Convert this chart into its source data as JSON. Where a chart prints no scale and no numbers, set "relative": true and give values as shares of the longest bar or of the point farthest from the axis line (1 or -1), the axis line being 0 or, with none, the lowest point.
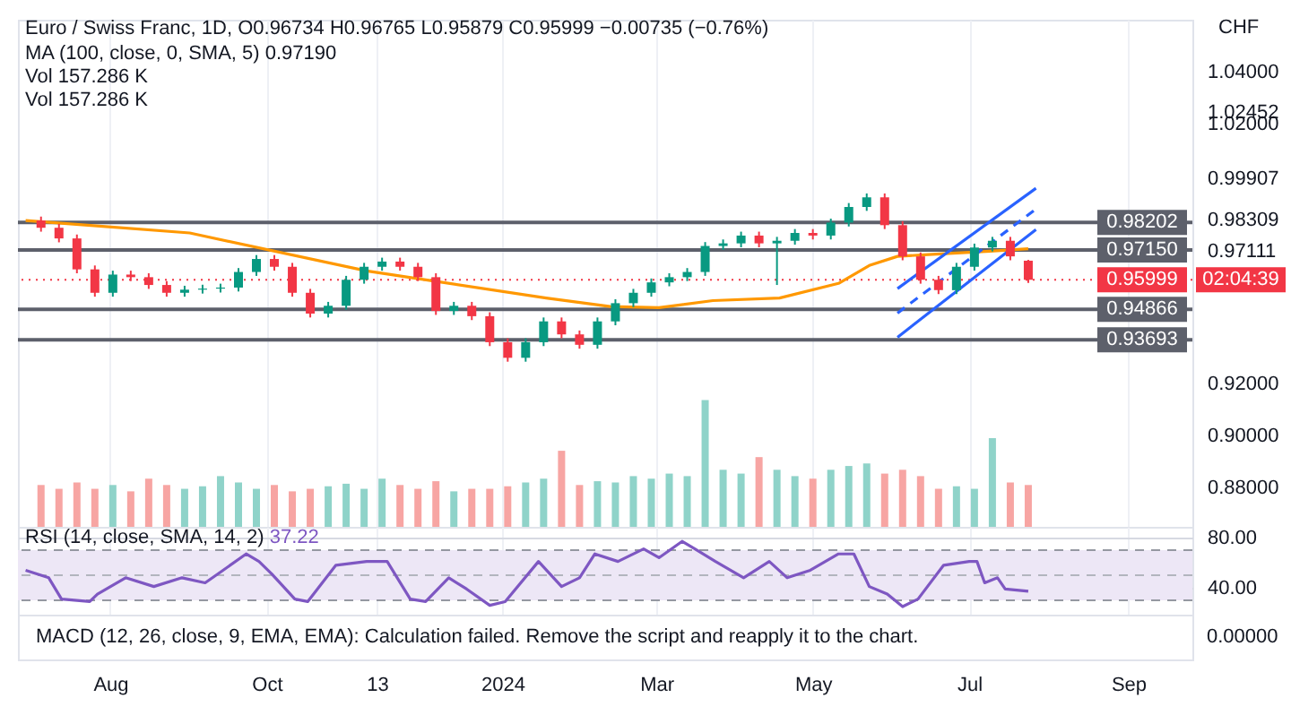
{
  "chart_data": [
    {
      "type": "candlestick",
      "title": "Euro / Swiss Franc, 1D, O0.96734 H0.96765 L0.95879 C0.95999 −0.00735 (−0.76%)",
      "ylabel": "CHF",
      "annotations": [
        "MA (100, close, 0, SMA, 5) 0.97190",
        "02:04:39"
      ],
      "x": [
        "2023-07-05",
        "2023-07-12",
        "2023-07-19",
        "2023-07-26",
        "2023-08-02",
        "2023-08-09",
        "2023-08-16",
        "2023-08-23",
        "2023-08-30",
        "2023-09-06",
        "2023-09-13",
        "2023-09-20",
        "2023-09-27",
        "2023-10-04",
        "2023-10-11",
        "2023-10-18",
        "2023-10-25",
        "2023-11-01",
        "2023-11-08",
        "2023-11-15",
        "2023-11-22",
        "2023-11-29",
        "2023-12-06",
        "2023-12-13",
        "2023-12-20",
        "2023-12-27",
        "2024-01-03",
        "2024-01-10",
        "2024-01-17",
        "2024-01-24",
        "2024-01-31",
        "2024-02-07",
        "2024-02-14",
        "2024-02-21",
        "2024-02-28",
        "2024-03-06",
        "2024-03-13",
        "2024-03-20",
        "2024-03-27",
        "2024-04-03",
        "2024-04-10",
        "2024-04-17",
        "2024-04-24",
        "2024-05-01",
        "2024-05-08",
        "2024-05-15",
        "2024-05-22",
        "2024-05-29",
        "2024-06-05",
        "2024-06-12",
        "2024-06-19",
        "2024-06-26",
        "2024-07-03",
        "2024-07-10",
        "2024-07-17",
        "2024-07-24"
      ],
      "ohlc": [
        [
          0.9828,
          0.9843,
          0.9785,
          0.98
        ],
        [
          0.98,
          0.9815,
          0.9744,
          0.9759
        ],
        [
          0.9759,
          0.9774,
          0.9625,
          0.964
        ],
        [
          0.964,
          0.9655,
          0.9535,
          0.955
        ],
        [
          0.955,
          0.9635,
          0.9535,
          0.962
        ],
        [
          0.962,
          0.9635,
          0.9595,
          0.961
        ],
        [
          0.961,
          0.9625,
          0.9565,
          0.958
        ],
        [
          0.958,
          0.9595,
          0.9535,
          0.955
        ],
        [
          0.955,
          0.9577,
          0.9535,
          0.9562
        ],
        [
          0.9562,
          0.9581,
          0.9547,
          0.9566
        ],
        [
          0.9566,
          0.9585,
          0.9551,
          0.957
        ],
        [
          0.957,
          0.9645,
          0.9555,
          0.963
        ],
        [
          0.963,
          0.9695,
          0.9615,
          0.968
        ],
        [
          0.968,
          0.9695,
          0.9635,
          0.965
        ],
        [
          0.965,
          0.9665,
          0.9535,
          0.955
        ],
        [
          0.955,
          0.9565,
          0.9455,
          0.947
        ],
        [
          0.947,
          0.9515,
          0.9455,
          0.95
        ],
        [
          0.95,
          0.9615,
          0.9485,
          0.96
        ],
        [
          0.96,
          0.9665,
          0.9585,
          0.965
        ],
        [
          0.965,
          0.9685,
          0.9635,
          0.967
        ],
        [
          0.967,
          0.9685,
          0.9635,
          0.965
        ],
        [
          0.965,
          0.9665,
          0.9595,
          0.961
        ],
        [
          0.961,
          0.9625,
          0.9465,
          0.948
        ],
        [
          0.948,
          0.9515,
          0.9465,
          0.95
        ],
        [
          0.95,
          0.9515,
          0.9445,
          0.946
        ],
        [
          0.946,
          0.9475,
          0.9345,
          0.936
        ],
        [
          0.936,
          0.9375,
          0.9285,
          0.93
        ],
        [
          0.93,
          0.9375,
          0.9285,
          0.936
        ],
        [
          0.936,
          0.9455,
          0.9345,
          0.944
        ],
        [
          0.944,
          0.9455,
          0.9375,
          0.939
        ],
        [
          0.939,
          0.9405,
          0.9335,
          0.935
        ],
        [
          0.935,
          0.9455,
          0.9335,
          0.944
        ],
        [
          0.944,
          0.9525,
          0.9425,
          0.951
        ],
        [
          0.951,
          0.9565,
          0.9495,
          0.955
        ],
        [
          0.955,
          0.9605,
          0.9535,
          0.959
        ],
        [
          0.959,
          0.9625,
          0.9575,
          0.961
        ],
        [
          0.961,
          0.9645,
          0.9595,
          0.963
        ],
        [
          0.963,
          0.9745,
          0.9615,
          0.973
        ],
        [
          0.973,
          0.9755,
          0.9715,
          0.974
        ],
        [
          0.974,
          0.9785,
          0.9725,
          0.977
        ],
        [
          0.977,
          0.9785,
          0.9725,
          0.974
        ],
        [
          0.974,
          0.9765,
          0.958,
          0.975
        ],
        [
          0.975,
          0.9795,
          0.9735,
          0.978
        ],
        [
          0.978,
          0.9795,
          0.9755,
          0.977
        ],
        [
          0.977,
          0.9835,
          0.9755,
          0.982
        ],
        [
          0.982,
          0.9895,
          0.9805,
          0.988
        ],
        [
          0.988,
          0.9932,
          0.9865,
          0.9917
        ],
        [
          0.9917,
          0.9932,
          0.9795,
          0.981
        ],
        [
          0.981,
          0.9825,
          0.9675,
          0.969
        ],
        [
          0.969,
          0.9705,
          0.9585,
          0.96
        ],
        [
          0.96,
          0.9615,
          0.9545,
          0.956
        ],
        [
          0.956,
          0.9665,
          0.9545,
          0.965
        ],
        [
          0.965,
          0.9739,
          0.9635,
          0.9724
        ],
        [
          0.9724,
          0.9765,
          0.9709,
          0.975
        ],
        [
          0.975,
          0.9765,
          0.9675,
          0.969
        ],
        [
          0.96734,
          0.96765,
          0.95879,
          0.95999
        ]
      ],
      "colors": [
        "#f23645",
        "#f23645",
        "#f23645",
        "#f23645",
        "#089981",
        "#f23645",
        "#f23645",
        "#f23645",
        "#089981",
        "#089981",
        "#089981",
        "#089981",
        "#089981",
        "#f23645",
        "#f23645",
        "#f23645",
        "#089981",
        "#089981",
        "#089981",
        "#089981",
        "#f23645",
        "#f23645",
        "#f23645",
        "#089981",
        "#f23645",
        "#f23645",
        "#f23645",
        "#089981",
        "#089981",
        "#f23645",
        "#f23645",
        "#089981",
        "#089981",
        "#089981",
        "#089981",
        "#089981",
        "#089981",
        "#089981",
        "#089981",
        "#089981",
        "#f23645",
        "#089981",
        "#089981",
        "#f23645",
        "#089981",
        "#089981",
        "#089981",
        "#f23645",
        "#f23645",
        "#f23645",
        "#f23645",
        "#089981",
        "#089981",
        "#089981",
        "#f23645",
        "#f23645"
      ],
      "series": [
        {
          "type": "line",
          "color": "#ff9800",
          "x": [
            "2023-06-29",
            "2023-09-01",
            "2023-11-09",
            "2024-01-18",
            "2024-02-12",
            "2024-03-02",
            "2024-03-23",
            "2024-04-18",
            "2024-05-11",
            "2024-05-23",
            "2024-06-03",
            "2024-06-15",
            "2024-07-09",
            "2024-07-24"
          ],
          "values": [
            0.9828,
            0.978,
            0.9634,
            0.953,
            0.9497,
            0.9493,
            0.952,
            0.953,
            0.9586,
            0.9655,
            0.969,
            0.9697,
            0.971,
            0.9719
          ]
        },
        {
          "type": "line",
          "color": "#2962ff",
          "x": [
            "2024-06-03",
            "2024-07-27"
          ],
          "values": [
            0.9566,
            0.9952
          ]
        },
        {
          "type": "line",
          "color": "#2962ff",
          "line_style": "dashed",
          "x": [
            "2024-06-03",
            "2024-07-27"
          ],
          "values": [
            0.9472,
            0.9872
          ]
        },
        {
          "type": "line",
          "color": "#2962ff",
          "x": [
            "2024-06-03",
            "2024-07-27"
          ],
          "values": [
            0.9379,
            0.9793
          ]
        }
      ],
      "ref_lines": [
        {
          "axis": "y",
          "value": 0.98202,
          "label": "0.98202",
          "color": "#5d606b"
        },
        {
          "axis": "y",
          "value": 0.9715,
          "label": "0.97150",
          "color": "#5d606b"
        },
        {
          "axis": "y",
          "value": 0.94866,
          "label": "0.94866",
          "color": "#5d606b"
        },
        {
          "axis": "y",
          "value": 0.93693,
          "label": "0.93693",
          "color": "#5d606b"
        },
        {
          "axis": "y",
          "value": 0.95999,
          "label": "0.95999",
          "color": "#f23645",
          "line_style": "dotted"
        }
      ],
      "xlim": [
        "2023-06-26",
        "2024-09-26"
      ],
      "xticks": [
        {
          "value": "2023-08-01",
          "label": null
        },
        {
          "value": "2023-10-01",
          "label": null
        },
        {
          "value": "2023-11-13",
          "label": null
        },
        {
          "value": "2024-01-01",
          "label": null
        },
        {
          "value": "2024-03-01",
          "label": null
        },
        {
          "value": "2024-05-01",
          "label": null
        },
        {
          "value": "2024-07-01",
          "label": null
        },
        {
          "value": "2024-09-01",
          "label": null
        }
      ],
      "ylim": [
        0.865,
        1.06
      ],
      "yticks": [
        {
          "value": 1.04,
          "label": "1.04000"
        },
        {
          "value": 1.02452,
          "label": "1.02452"
        },
        {
          "value": 1.02,
          "label": "1.02000"
        },
        {
          "value": 0.99907,
          "label": "0.99907"
        },
        {
          "value": 0.98309,
          "label": "0.98309"
        },
        {
          "value": 0.97111,
          "label": "0.97111"
        },
        {
          "value": 0.92,
          "label": "0.92000"
        },
        {
          "value": 0.9,
          "label": "0.90000"
        },
        {
          "value": 0.88,
          "label": "0.88000"
        }
      ],
      "grid": "x",
      "tick_labels": "y"
    },
    {
      "type": "bar",
      "relative": true,
      "annotations": [
        "Vol 157.286 K",
        "Vol 157.286 K"
      ],
      "x": [
        "2023-07-05",
        "2023-07-12",
        "2023-07-19",
        "2023-07-26",
        "2023-08-02",
        "2023-08-09",
        "2023-08-16",
        "2023-08-23",
        "2023-08-30",
        "2023-09-06",
        "2023-09-13",
        "2023-09-20",
        "2023-09-27",
        "2023-10-04",
        "2023-10-11",
        "2023-10-18",
        "2023-10-25",
        "2023-11-01",
        "2023-11-08",
        "2023-11-15",
        "2023-11-22",
        "2023-11-29",
        "2023-12-06",
        "2023-12-13",
        "2023-12-20",
        "2023-12-27",
        "2024-01-03",
        "2024-01-10",
        "2024-01-17",
        "2024-01-24",
        "2024-01-31",
        "2024-02-07",
        "2024-02-14",
        "2024-02-21",
        "2024-02-28",
        "2024-03-06",
        "2024-03-13",
        "2024-03-20",
        "2024-03-27",
        "2024-04-03",
        "2024-04-10",
        "2024-04-17",
        "2024-04-24",
        "2024-05-01",
        "2024-05-08",
        "2024-05-15",
        "2024-05-22",
        "2024-05-29",
        "2024-06-05",
        "2024-06-12",
        "2024-06-19",
        "2024-06-26",
        "2024-07-03",
        "2024-07-10",
        "2024-07-17",
        "2024-07-24"
      ],
      "values": [
        0.33,
        0.3,
        0.35,
        0.3,
        0.33,
        0.28,
        0.38,
        0.33,
        0.3,
        0.32,
        0.4,
        0.35,
        0.3,
        0.33,
        0.28,
        0.3,
        0.32,
        0.34,
        0.3,
        0.38,
        0.33,
        0.3,
        0.36,
        0.28,
        0.3,
        0.3,
        0.32,
        0.35,
        0.38,
        0.6,
        0.33,
        0.36,
        0.35,
        0.4,
        0.38,
        0.42,
        0.4,
        1,
        0.45,
        0.42,
        0.55,
        0.45,
        0.4,
        0.38,
        0.45,
        0.48,
        0.5,
        0.42,
        0.45,
        0.4,
        0.3,
        0.32,
        0.3,
        0.7,
        0.35,
        0.33
      ],
      "colors": [
        "#f7a5a3",
        "#f7a5a3",
        "#f7a5a3",
        "#f7a5a3",
        "#8fd3c9",
        "#f7a5a3",
        "#f7a5a3",
        "#f7a5a3",
        "#8fd3c9",
        "#8fd3c9",
        "#8fd3c9",
        "#8fd3c9",
        "#8fd3c9",
        "#f7a5a3",
        "#f7a5a3",
        "#f7a5a3",
        "#8fd3c9",
        "#8fd3c9",
        "#8fd3c9",
        "#8fd3c9",
        "#f7a5a3",
        "#f7a5a3",
        "#f7a5a3",
        "#8fd3c9",
        "#f7a5a3",
        "#f7a5a3",
        "#f7a5a3",
        "#8fd3c9",
        "#8fd3c9",
        "#f7a5a3",
        "#f7a5a3",
        "#8fd3c9",
        "#8fd3c9",
        "#8fd3c9",
        "#8fd3c9",
        "#8fd3c9",
        "#8fd3c9",
        "#8fd3c9",
        "#8fd3c9",
        "#8fd3c9",
        "#f7a5a3",
        "#8fd3c9",
        "#8fd3c9",
        "#f7a5a3",
        "#8fd3c9",
        "#8fd3c9",
        "#8fd3c9",
        "#f7a5a3",
        "#f7a5a3",
        "#f7a5a3",
        "#f7a5a3",
        "#8fd3c9",
        "#8fd3c9",
        "#8fd3c9",
        "#f7a5a3",
        "#f7a5a3"
      ],
      "xlim": [
        "2023-06-26",
        "2024-09-26"
      ]
    },
    {
      "type": "line",
      "title": "RSI (14, close, SMA, 14, 2)",
      "annotations": [
        "37.22"
      ],
      "series": [
        {
          "color": "#7e57c2",
          "x": [
            "2023-06-29",
            "2023-07-08",
            "2023-07-13",
            "2023-07-24",
            "2023-07-27",
            "2023-08-07",
            "2023-08-18",
            "2023-08-29",
            "2023-09-07",
            "2023-09-14",
            "2023-09-23",
            "2023-09-28",
            "2023-10-03",
            "2023-10-12",
            "2023-10-17",
            "2023-10-28",
            "2023-11-09",
            "2023-11-17",
            "2023-11-26",
            "2023-12-02",
            "2023-12-11",
            "2023-12-18",
            "2023-12-27",
            "2024-01-02",
            "2024-01-15",
            "2024-01-24",
            "2024-01-31",
            "2024-02-06",
            "2024-02-15",
            "2024-02-25",
            "2024-03-02",
            "2024-03-11",
            "2024-03-16",
            "2024-03-24",
            "2024-04-04",
            "2024-04-14",
            "2024-04-21",
            "2024-04-30",
            "2024-05-11",
            "2024-05-17",
            "2024-05-23",
            "2024-05-30",
            "2024-06-05",
            "2024-06-11",
            "2024-06-21",
            "2024-07-01",
            "2024-07-04",
            "2024-07-07",
            "2024-07-12",
            "2024-07-15",
            "2024-07-24"
          ],
          "values": [
            54,
            48,
            31,
            29,
            35,
            48,
            41,
            48,
            44,
            54,
            67,
            61,
            51,
            31,
            29,
            58,
            61,
            61,
            31,
            29,
            48,
            39,
            26,
            29,
            61,
            41,
            48,
            67,
            61,
            71,
            64,
            77,
            71,
            61,
            48,
            61,
            48,
            54,
            67,
            67,
            41,
            35,
            25,
            31,
            58,
            61,
            61,
            44,
            48,
            39,
            37.22
          ]
        }
      ],
      "ref_lines": [
        {
          "axis": "y",
          "value": 70,
          "color": "#9598a1",
          "line_style": "dashed"
        },
        {
          "axis": "y",
          "value": 50,
          "color": "#b2b5be",
          "line_style": "dashed"
        },
        {
          "axis": "y",
          "value": 30,
          "color": "#9598a1",
          "line_style": "dashed"
        }
      ],
      "bands": [
        {
          "axis": "y",
          "from": 30,
          "to": 70,
          "color": "#ede7f6"
        }
      ],
      "xlim": [
        "2023-06-26",
        "2024-09-26"
      ],
      "xticks": [
        {
          "value": "2023-08-01",
          "label": "Aug"
        },
        {
          "value": "2023-10-01",
          "label": "Oct"
        },
        {
          "value": "2023-11-13",
          "label": "13"
        },
        {
          "value": "2024-01-01",
          "label": "2024"
        },
        {
          "value": "2024-03-01",
          "label": "Mar"
        },
        {
          "value": "2024-05-01",
          "label": "May"
        },
        {
          "value": "2024-07-01",
          "label": "Jul"
        },
        {
          "value": "2024-09-01",
          "label": "Sep"
        }
      ],
      "ylim": [
        18.6,
        88.6
      ],
      "yticks": [
        {
          "value": 80,
          "label": "80.00"
        },
        {
          "value": 40,
          "label": "40.00"
        }
      ],
      "grid": true
    },
    {
      "type": "other",
      "annotations": [
        "MACD (12, 26, close, 9, EMA, EMA): Calculation failed. Remove the script and reapply it to the chart.",
        "0.00000"
      ]
    }
  ]
}
